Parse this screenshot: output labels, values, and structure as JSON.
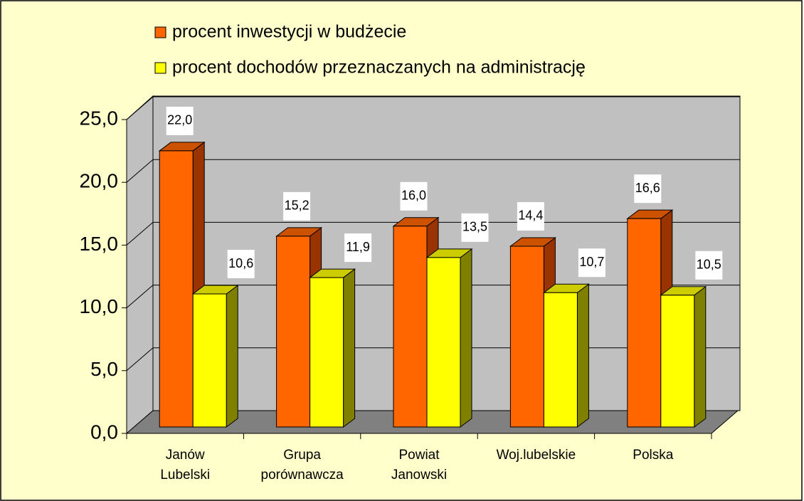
{
  "chart_data": {
    "type": "bar3d",
    "categories": [
      [
        "Janów",
        "Lubelski"
      ],
      [
        "Grupa",
        "porównawcza"
      ],
      [
        "Powiat",
        "Janowski"
      ],
      [
        "Woj.lubelskie"
      ],
      [
        "Polska"
      ]
    ],
    "series": [
      {
        "name": "procent inwestycji w budżecie",
        "color": "#ff6600",
        "values": [
          22.0,
          15.2,
          16.0,
          14.4,
          16.6
        ],
        "value_labels": [
          "22,0",
          "15,2",
          "16,0",
          "14,4",
          "16,6"
        ]
      },
      {
        "name": "procent dochodów przeznaczanych na administrację",
        "color": "#ffff00",
        "values": [
          10.6,
          11.9,
          13.5,
          10.7,
          10.5
        ],
        "value_labels": [
          "10,6",
          "11,9",
          "13,5",
          "10,7",
          "10,5"
        ]
      }
    ],
    "ylim": [
      0,
      25
    ],
    "yticks": [
      {
        "value": 0,
        "label": "0,0"
      },
      {
        "value": 5,
        "label": "5,0"
      },
      {
        "value": 10,
        "label": "10,0"
      },
      {
        "value": 15,
        "label": "15,0"
      },
      {
        "value": 20,
        "label": "20,0"
      },
      {
        "value": 25,
        "label": "25,0"
      }
    ],
    "grid": true,
    "legend": "top"
  }
}
